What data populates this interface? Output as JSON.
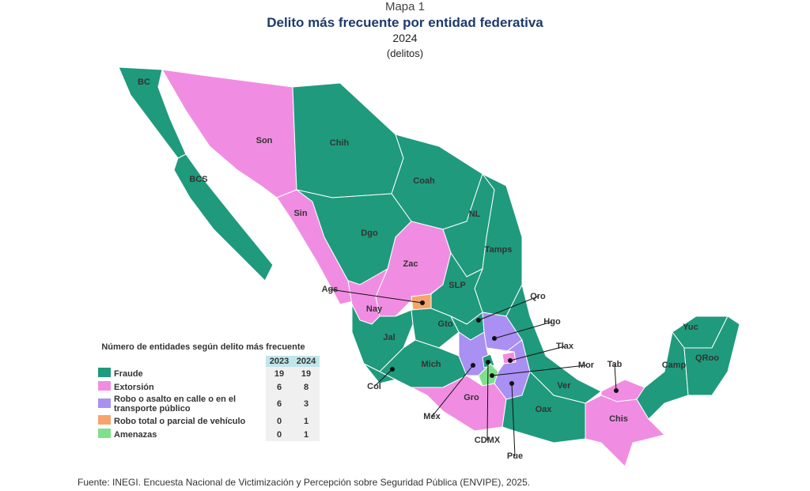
{
  "header": {
    "kicker": "Mapa 1",
    "title": "Delito más frecuente por entidad federativa",
    "year": "2024",
    "unit": "(delitos)"
  },
  "legend": {
    "title": "Número de entidades según delito más frecuente",
    "columns": [
      "2023",
      "2024"
    ],
    "rows": [
      {
        "label": "Fraude",
        "color": "#1f9a7c",
        "values": [
          19,
          19
        ]
      },
      {
        "label": "Extorsión",
        "color": "#f08de2",
        "values": [
          6,
          8
        ]
      },
      {
        "label": "Robo o asalto en calle o en el transporte público",
        "color": "#a990f2",
        "values": [
          6,
          3
        ]
      },
      {
        "label": "Robo total o parcial de vehículo",
        "color": "#f6a46c",
        "values": [
          0,
          1
        ]
      },
      {
        "label": "Amenazas",
        "color": "#7fe08c",
        "values": [
          0,
          1
        ]
      }
    ]
  },
  "states": [
    {
      "label": "BC",
      "category": 0
    },
    {
      "label": "BCS",
      "category": 0
    },
    {
      "label": "Son",
      "category": 1
    },
    {
      "label": "Chih",
      "category": 0
    },
    {
      "label": "Coah",
      "category": 0
    },
    {
      "label": "Sin",
      "category": 1
    },
    {
      "label": "Dgo",
      "category": 0
    },
    {
      "label": "NL",
      "category": 0
    },
    {
      "label": "Tamps",
      "category": 0
    },
    {
      "label": "Zac",
      "category": 1
    },
    {
      "label": "Nay",
      "category": 1
    },
    {
      "label": "Ags",
      "category": 3
    },
    {
      "label": "SLP",
      "category": 0
    },
    {
      "label": "Jal",
      "category": 0
    },
    {
      "label": "Col",
      "category": 0
    },
    {
      "label": "Gto",
      "category": 0
    },
    {
      "label": "Qro",
      "category": 0
    },
    {
      "label": "Hgo",
      "category": 2
    },
    {
      "label": "Mich",
      "category": 0
    },
    {
      "label": "Méx",
      "category": 2
    },
    {
      "label": "CDMX",
      "category": 0
    },
    {
      "label": "Mor",
      "category": 4
    },
    {
      "label": "Tlax",
      "category": 1
    },
    {
      "label": "Pue",
      "category": 2
    },
    {
      "label": "Gro",
      "category": 1
    },
    {
      "label": "Ver",
      "category": 0
    },
    {
      "label": "Oax",
      "category": 0
    },
    {
      "label": "Tab",
      "category": 1
    },
    {
      "label": "Chis",
      "category": 1
    },
    {
      "label": "Camp",
      "category": 0
    },
    {
      "label": "Yuc",
      "category": 0
    },
    {
      "label": "QRoo",
      "category": 0
    }
  ],
  "source": "Fuente: INEGI. Encuesta Nacional de Victimización y Percepción sobre Seguridad Pública (ENVIPE), 2025."
}
